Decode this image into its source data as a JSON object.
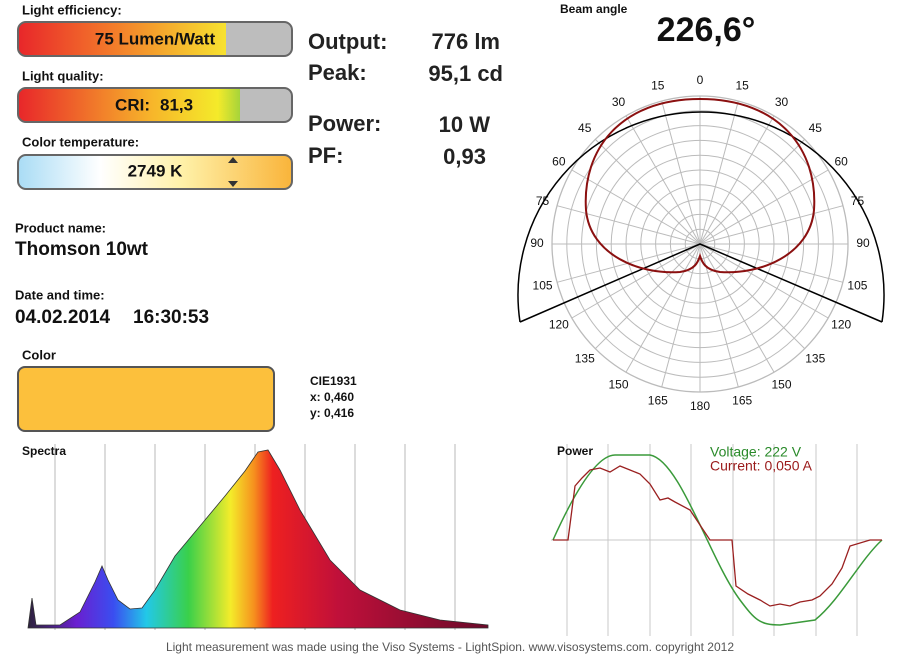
{
  "light_efficiency": {
    "label": "Light efficiency:",
    "value": "75 Lumen/Watt"
  },
  "light_quality": {
    "label": "Light quality:",
    "prefix": "CRI:",
    "value": "81,3"
  },
  "color_temperature": {
    "label": "Color temperature:",
    "value": "2749 K"
  },
  "product": {
    "label": "Product name:",
    "value": "Thomson 10wt"
  },
  "datetime": {
    "label": "Date and time:",
    "date": "04.02.2014",
    "time": "16:30:53"
  },
  "color": {
    "label": "Color",
    "cie": "CIE1931",
    "x": "x: 0,460",
    "y": "y: 0,416"
  },
  "readings": [
    {
      "label": "Output:",
      "value": "776 lm"
    },
    {
      "label": "Peak:",
      "value": "95,1 cd"
    },
    {
      "label": "Power:",
      "value": "10 W"
    },
    {
      "label": "PF:",
      "value": "0,93"
    }
  ],
  "beam": {
    "label": "Beam angle",
    "value": "226,6°"
  },
  "polar": {
    "angles": [
      0,
      15,
      30,
      45,
      60,
      75,
      90,
      105,
      120,
      135,
      150,
      165,
      180
    ]
  },
  "spectra": {
    "title": "Spectra"
  },
  "power": {
    "title": "Power",
    "voltage": "Voltage: 222 V",
    "current": "Current: 0,050 A"
  },
  "footer": "Light measurement was made using the Viso Systems - LightSpion. www.visosystems.com. copyright 2012"
}
